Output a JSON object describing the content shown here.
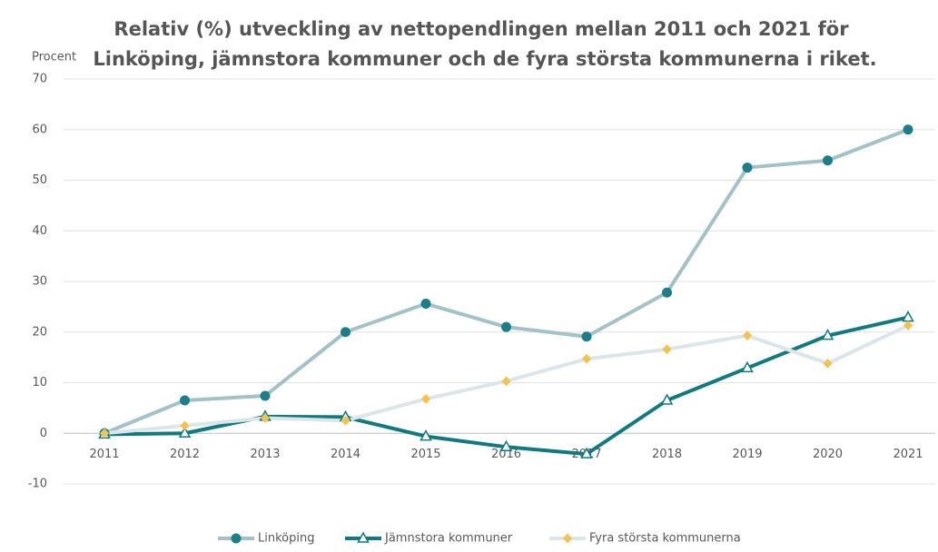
{
  "chart_data": {
    "type": "line",
    "title": [
      "Relativ (%) utveckling av nettopendlingen mellan 2011 och 2021 för",
      "Linköping, jämnstora kommuner och de fyra största kommunerna i riket."
    ],
    "y_label": "Procent",
    "categories": [
      "2011",
      "2012",
      "2013",
      "2014",
      "2015",
      "2016",
      "2017",
      "2018",
      "2019",
      "2020",
      "2021"
    ],
    "series": [
      {
        "name": "Linköping",
        "color": "#a3c2c8",
        "marker_color": "#1b7e89",
        "marker": "circle",
        "values": [
          0,
          6.5,
          7.4,
          20,
          25.6,
          21,
          19.1,
          27.8,
          52.5,
          53.9,
          60
        ]
      },
      {
        "name": "Jämnstora kommuner",
        "color": "#0f7a80",
        "marker_color": "#0f7a80",
        "marker": "triangle",
        "values": [
          -0.2,
          0,
          3.3,
          3.2,
          -0.6,
          -2.7,
          -4.1,
          6.5,
          12.9,
          19.3,
          22.9
        ]
      },
      {
        "name": "Fyra största kommunerna",
        "color": "#dce6ea",
        "marker_color": "#f6c24e",
        "marker": "diamond",
        "values": [
          0,
          1.5,
          3,
          2.5,
          6.8,
          10.3,
          14.7,
          16.6,
          19.3,
          13.8,
          21.3
        ]
      }
    ],
    "ylim": [
      -10,
      70
    ],
    "yticks": [
      -10,
      0,
      10,
      20,
      30,
      40,
      50,
      60,
      70
    ],
    "grid": true
  }
}
